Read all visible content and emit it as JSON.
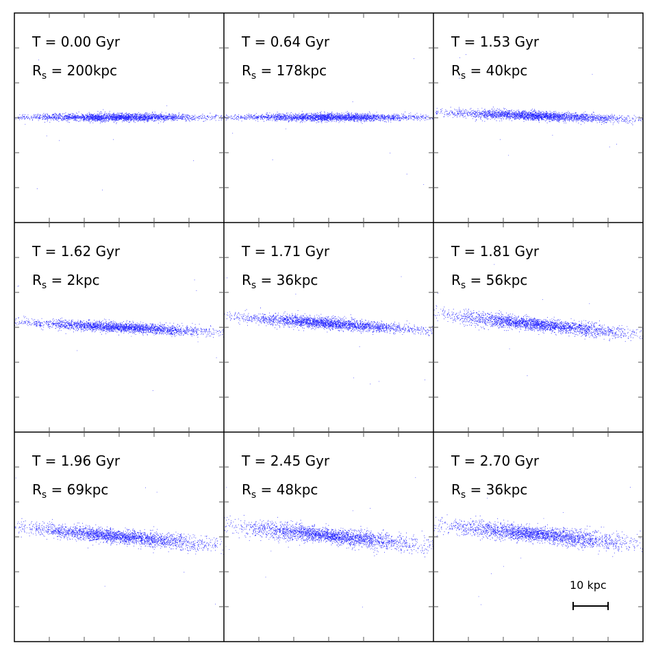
{
  "panels": [
    {
      "time": "T = 0.00 Gyr",
      "rs_prefix": "R",
      "rs_sub": "s",
      "rs_value": " = 200kpc"
    },
    {
      "time": "T = 0.64 Gyr",
      "rs_prefix": "R",
      "rs_sub": "s",
      "rs_value": " = 178kpc"
    },
    {
      "time": "T = 1.53 Gyr",
      "rs_prefix": "R",
      "rs_sub": "s",
      "rs_value": " = 40kpc"
    },
    {
      "time": "T = 1.62 Gyr",
      "rs_prefix": "R",
      "rs_sub": "s",
      "rs_value": " = 2kpc"
    },
    {
      "time": "T = 1.71 Gyr",
      "rs_prefix": "R",
      "rs_sub": "s",
      "rs_value": " = 36kpc"
    },
    {
      "time": "T = 1.81 Gyr",
      "rs_prefix": "R",
      "rs_sub": "s",
      "rs_value": " = 56kpc"
    },
    {
      "time": "T = 1.96 Gyr",
      "rs_prefix": "R",
      "rs_sub": "s",
      "rs_value": " = 69kpc"
    },
    {
      "time": "T = 2.45 Gyr",
      "rs_prefix": "R",
      "rs_sub": "s",
      "rs_value": " = 48kpc"
    },
    {
      "time": "T = 2.70 Gyr",
      "rs_prefix": "R",
      "rs_sub": "s",
      "rs_value": " = 36kpc"
    }
  ],
  "scale_bar": {
    "label": "10 kpc"
  },
  "colors": {
    "particles": "#0000ff",
    "frame": "#000000",
    "background": "#ffffff"
  }
}
